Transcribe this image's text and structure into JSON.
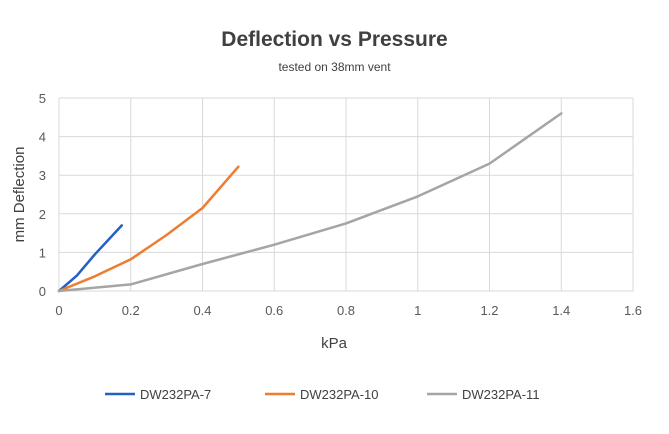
{
  "chart_data": {
    "type": "line",
    "title": "Deflection vs Pressure",
    "subtitle": "tested on 38mm vent",
    "xlabel": "kPa",
    "ylabel": "mm Deflection",
    "xlim": [
      0,
      1.6
    ],
    "ylim": [
      0,
      5
    ],
    "xticks": [
      "0",
      "0.2",
      "0.4",
      "0.6",
      "0.8",
      "1",
      "1.2",
      "1.4",
      "1.6"
    ],
    "yticks": [
      "0",
      "1",
      "2",
      "3",
      "4",
      "5"
    ],
    "grid": true,
    "legend_position": "bottom",
    "series": [
      {
        "name": "DW232PA-7",
        "color": "#2460C4",
        "x": [
          0,
          0.05,
          0.1,
          0.175
        ],
        "y": [
          0,
          0.4,
          0.95,
          1.7
        ]
      },
      {
        "name": "DW232PA-10",
        "color": "#ED7D31",
        "x": [
          0,
          0.1,
          0.2,
          0.3,
          0.4,
          0.5
        ],
        "y": [
          0,
          0.38,
          0.82,
          1.45,
          2.15,
          3.22
        ]
      },
      {
        "name": "DW232PA-11",
        "color": "#A5A5A5",
        "x": [
          0,
          0.2,
          0.4,
          0.6,
          0.8,
          1.0,
          1.2,
          1.4
        ],
        "y": [
          0,
          0.17,
          0.7,
          1.2,
          1.75,
          2.45,
          3.3,
          4.6
        ]
      }
    ]
  }
}
